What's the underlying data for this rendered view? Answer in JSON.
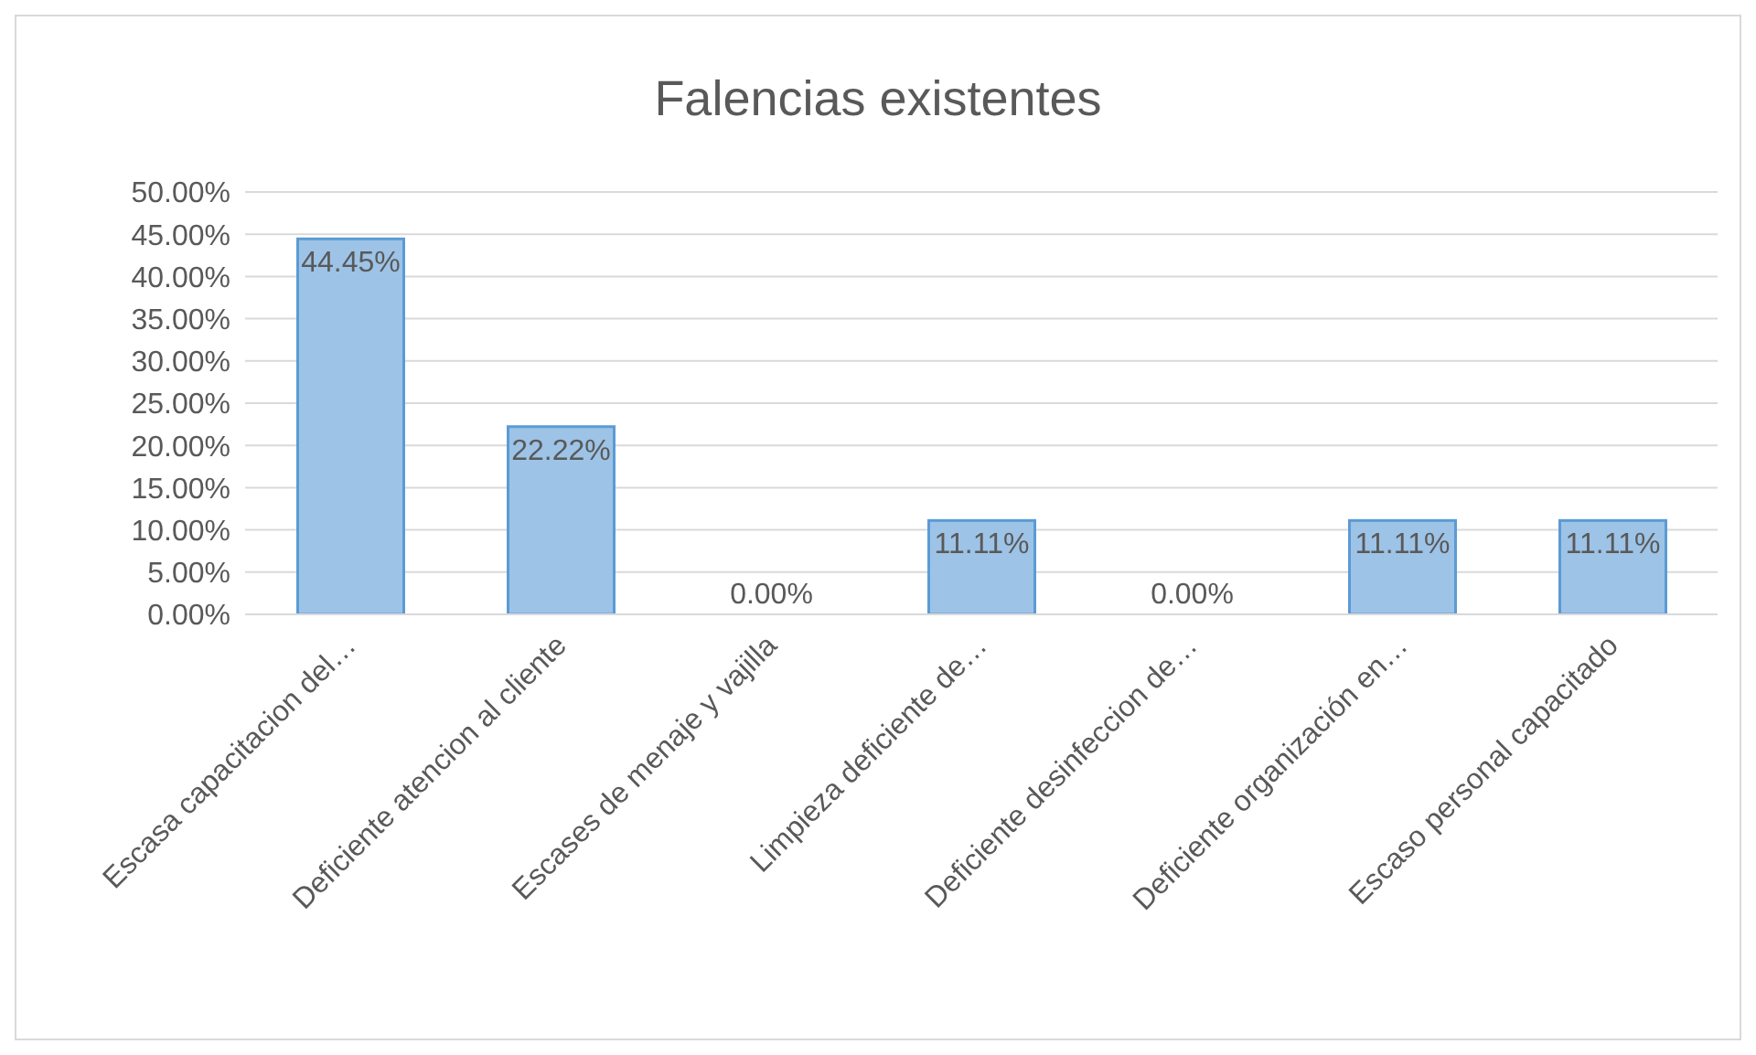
{
  "chart_data": {
    "type": "bar",
    "title": "Falencias existentes",
    "categories": [
      "Escasa capacitacion del…",
      "Deficiente atencion al cliente",
      "Escases de menaje y vajilla",
      "Limpieza deficiente de…",
      "Deficiente desinfeccion de…",
      "Deficiente organización en…",
      "Escaso personal capacitado"
    ],
    "values": [
      44.45,
      22.22,
      0,
      11.11,
      0,
      11.11,
      11.11
    ],
    "value_labels": [
      "44.45%",
      "22.22%",
      "0.00%",
      "11.11%",
      "0.00%",
      "11.11%",
      "11.11%"
    ],
    "color": "#9dc3e6",
    "ylim": [
      0,
      50
    ],
    "yticks": [
      {
        "value": 0,
        "label": "0.00%"
      },
      {
        "value": 5,
        "label": "5.00%"
      },
      {
        "value": 10,
        "label": "10.00%"
      },
      {
        "value": 15,
        "label": "15.00%"
      },
      {
        "value": 20,
        "label": "20.00%"
      },
      {
        "value": 25,
        "label": "25.00%"
      },
      {
        "value": 30,
        "label": "30.00%"
      },
      {
        "value": 35,
        "label": "35.00%"
      },
      {
        "value": 40,
        "label": "40.00%"
      },
      {
        "value": 45,
        "label": "45.00%"
      },
      {
        "value": 50,
        "label": "50.00%"
      }
    ],
    "grid": "y",
    "legend": false
  }
}
